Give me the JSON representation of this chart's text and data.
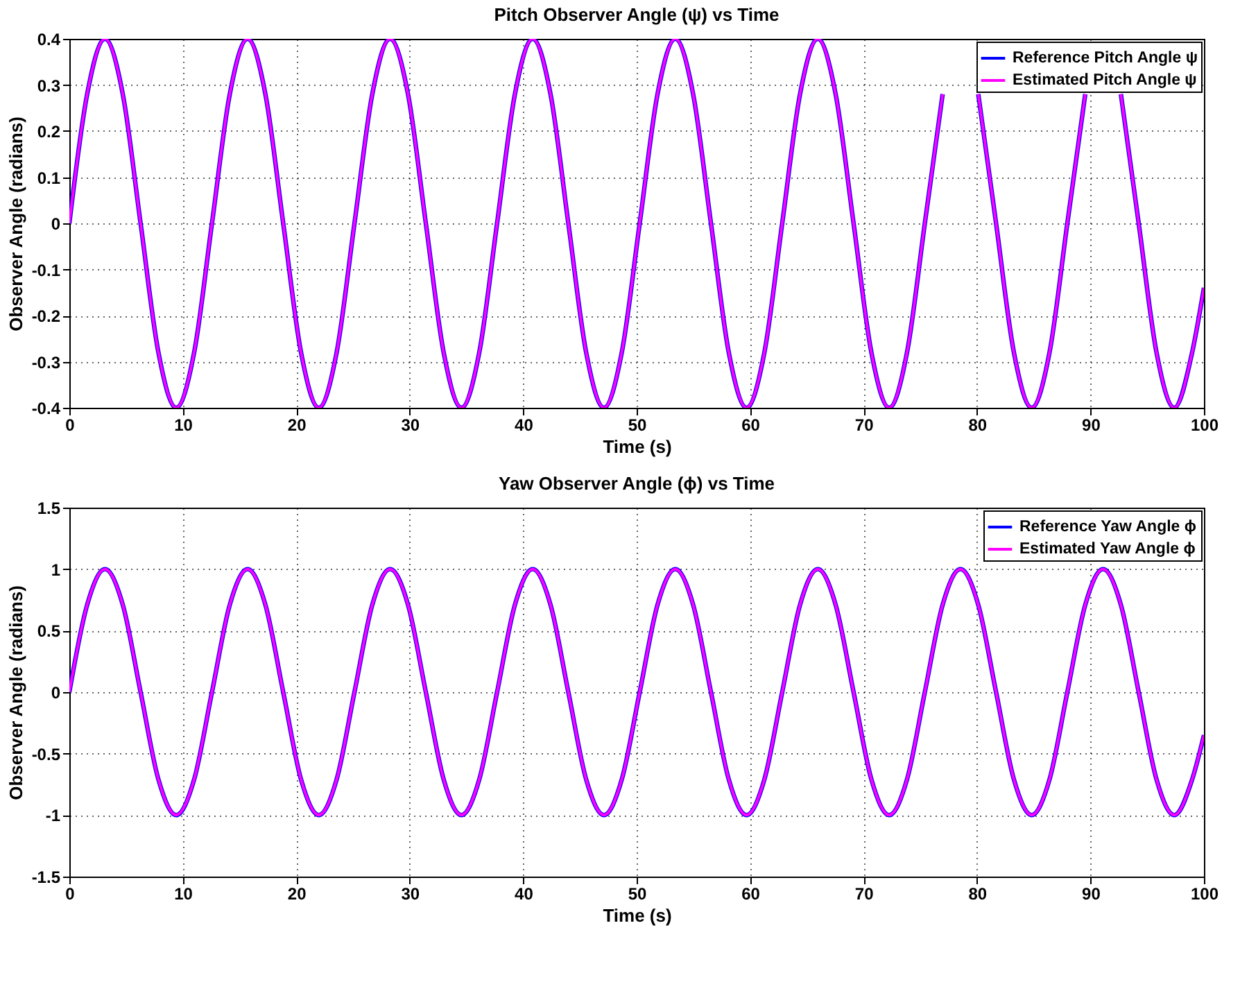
{
  "chart_data": [
    {
      "type": "line",
      "title": "Pitch Observer Angle (ψ) vs Time",
      "xlabel": "Time (s)",
      "ylabel": "Observer Angle (radians)",
      "x": [
        0,
        1.57,
        3.14,
        4.71,
        6.28,
        7.85,
        9.42,
        11.0,
        12.57,
        14.14,
        15.71,
        17.28,
        18.85,
        20.42,
        21.99,
        23.56,
        25.13,
        26.7,
        28.27,
        29.85,
        31.42,
        32.99,
        34.56,
        36.13,
        37.7,
        39.27,
        40.84,
        42.41,
        43.98,
        45.55,
        47.12,
        48.69,
        50.27,
        51.84,
        53.41,
        54.98,
        56.55,
        58.12,
        59.69,
        61.26,
        62.83,
        64.4,
        65.97,
        67.54,
        69.12,
        70.69,
        72.26,
        73.83,
        75.4,
        76.97,
        78.54,
        80.11,
        81.68,
        83.25,
        84.82,
        86.39,
        87.96,
        89.54,
        91.11,
        92.68,
        94.25,
        95.82,
        97.39,
        98.96,
        100
      ],
      "series": [
        {
          "name": "Reference Pitch Angle ψ",
          "color": "#0000ff",
          "values": [
            0,
            0.28,
            0.4,
            0.28,
            0,
            -0.28,
            -0.4,
            -0.28,
            0,
            0.28,
            0.4,
            0.28,
            0,
            -0.28,
            -0.4,
            -0.28,
            0,
            0.28,
            0.4,
            0.28,
            0,
            -0.28,
            -0.4,
            -0.28,
            0,
            0.28,
            0.4,
            0.28,
            0,
            -0.28,
            -0.4,
            -0.28,
            0,
            0.28,
            0.4,
            0.28,
            0,
            -0.28,
            -0.4,
            -0.28,
            0,
            0.28,
            0.4,
            0.28,
            0,
            -0.28,
            -0.4,
            -0.28,
            0,
            0.28,
            null,
            0.28,
            0,
            -0.28,
            -0.4,
            -0.28,
            0,
            0.28,
            null,
            0.28,
            0,
            -0.28,
            -0.4,
            -0.28,
            -0.14
          ]
        },
        {
          "name": "Estimated Pitch Angle ψ",
          "color": "#ff00ff",
          "values": [
            0,
            0.28,
            0.4,
            0.28,
            0,
            -0.28,
            -0.4,
            -0.28,
            0,
            0.28,
            0.4,
            0.28,
            0,
            -0.28,
            -0.4,
            -0.28,
            0,
            0.28,
            0.4,
            0.28,
            0,
            -0.28,
            -0.4,
            -0.28,
            0,
            0.28,
            0.4,
            0.28,
            0,
            -0.28,
            -0.4,
            -0.28,
            0,
            0.28,
            0.4,
            0.28,
            0,
            -0.28,
            -0.4,
            -0.28,
            0,
            0.28,
            0.4,
            0.28,
            0,
            -0.28,
            -0.4,
            -0.28,
            0,
            0.28,
            null,
            0.28,
            0,
            -0.28,
            -0.4,
            -0.28,
            0,
            0.28,
            null,
            0.28,
            0,
            -0.28,
            -0.4,
            -0.28,
            -0.14
          ]
        }
      ],
      "xlim": [
        0,
        100
      ],
      "xticks": [
        0,
        10,
        20,
        30,
        40,
        50,
        60,
        70,
        80,
        90,
        100
      ],
      "ylim": [
        -0.4,
        0.4
      ],
      "yticks": [
        -0.4,
        -0.3,
        -0.2,
        -0.1,
        0,
        0.1,
        0.2,
        0.3,
        0.4
      ],
      "grid": true,
      "legend": "top right",
      "line_style": "solid"
    },
    {
      "type": "line",
      "title": "Yaw Observer Angle (ϕ) vs Time",
      "xlabel": "Time (s)",
      "ylabel": "Observer Angle (radians)",
      "x": [
        0,
        1.57,
        3.14,
        4.71,
        6.28,
        7.85,
        9.42,
        11.0,
        12.57,
        14.14,
        15.71,
        17.28,
        18.85,
        20.42,
        21.99,
        23.56,
        25.13,
        26.7,
        28.27,
        29.85,
        31.42,
        32.99,
        34.56,
        36.13,
        37.7,
        39.27,
        40.84,
        42.41,
        43.98,
        45.55,
        47.12,
        48.69,
        50.27,
        51.84,
        53.41,
        54.98,
        56.55,
        58.12,
        59.69,
        61.26,
        62.83,
        64.4,
        65.97,
        67.54,
        69.12,
        70.69,
        72.26,
        73.83,
        75.4,
        76.97,
        78.54,
        80.11,
        81.68,
        83.25,
        84.82,
        86.39,
        87.96,
        89.54,
        91.11,
        92.68,
        94.25,
        95.82,
        97.39,
        98.96,
        100
      ],
      "series": [
        {
          "name": "Reference Yaw Angle ϕ",
          "color": "#0000ff",
          "values": [
            0,
            0.71,
            1,
            0.71,
            0,
            -0.71,
            -1,
            -0.71,
            0,
            0.71,
            1,
            0.71,
            0,
            -0.71,
            -1,
            -0.71,
            0,
            0.71,
            1,
            0.71,
            0,
            -0.71,
            -1,
            -0.71,
            0,
            0.71,
            1,
            0.71,
            0,
            -0.71,
            -1,
            -0.71,
            0,
            0.71,
            1,
            0.71,
            0,
            -0.71,
            -1,
            -0.71,
            0,
            0.71,
            1,
            0.71,
            0,
            -0.71,
            -1,
            -0.71,
            0,
            0.71,
            1,
            0.71,
            0,
            -0.71,
            -1,
            -0.71,
            0,
            0.71,
            1,
            0.71,
            0,
            -0.71,
            -1,
            -0.71,
            -0.35
          ]
        },
        {
          "name": "Estimated Yaw Angle ϕ",
          "color": "#ff00ff",
          "values": [
            0,
            0.71,
            1,
            0.71,
            0,
            -0.71,
            -1,
            -0.71,
            0,
            0.71,
            1,
            0.71,
            0,
            -0.71,
            -1,
            -0.71,
            0,
            0.71,
            1,
            0.71,
            0,
            -0.71,
            -1,
            -0.71,
            0,
            0.71,
            1,
            0.71,
            0,
            -0.71,
            -1,
            -0.71,
            0,
            0.71,
            1,
            0.71,
            0,
            -0.71,
            -1,
            -0.71,
            0,
            0.71,
            1,
            0.71,
            0,
            -0.71,
            -1,
            -0.71,
            0,
            0.71,
            1,
            0.71,
            0,
            -0.71,
            -1,
            -0.71,
            0,
            0.71,
            1,
            0.71,
            0,
            -0.71,
            -1,
            -0.71,
            -0.35
          ]
        }
      ],
      "xlim": [
        0,
        100
      ],
      "xticks": [
        0,
        10,
        20,
        30,
        40,
        50,
        60,
        70,
        80,
        90,
        100
      ],
      "ylim": [
        -1.5,
        1.5
      ],
      "yticks": [
        -1.5,
        -1,
        -0.5,
        0,
        0.5,
        1,
        1.5
      ],
      "grid": true,
      "legend": "top right",
      "line_style": "solid"
    }
  ]
}
